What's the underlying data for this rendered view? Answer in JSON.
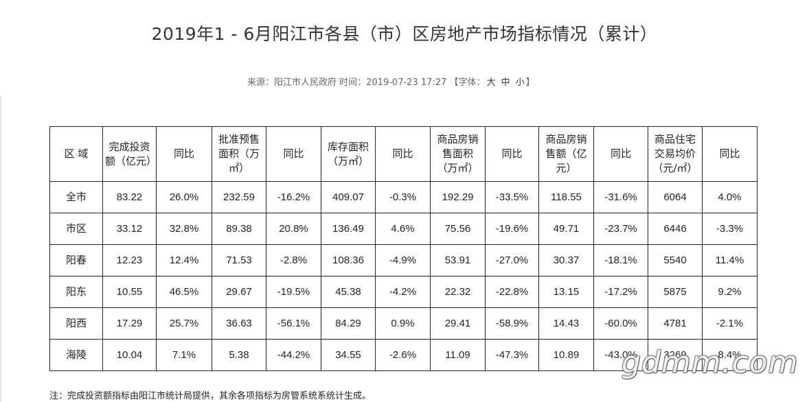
{
  "title": "2019年1 - 6月阳江市各县（市）区房地产市场指标情况（累计）",
  "meta": {
    "source": "来源：阳江市人民政府",
    "time": "时间：2019-07-23 17:27",
    "font_prefix": "【字体：",
    "font_large": "大",
    "font_medium": "中",
    "font_small": "小",
    "font_suffix": "】"
  },
  "table": {
    "headers": [
      "区 域",
      "完成投资额（亿元）",
      "同比",
      "批准预售面积（万㎡）",
      "同比",
      "库存面积（万㎡）",
      "同比",
      "商品房销售面积（万㎡）",
      "同比",
      "商品房销售额（亿元）",
      "同比",
      "商品住宅交易均价（元/㎡）",
      "同比"
    ],
    "rows": [
      [
        "全市",
        "83.22",
        "26.0%",
        "232.59",
        "-16.2%",
        "409.07",
        "-0.3%",
        "192.29",
        "-33.5%",
        "118.55",
        "-31.6%",
        "6064",
        "4.0%"
      ],
      [
        "市区",
        "33.12",
        "32.8%",
        "89.38",
        "20.8%",
        "136.49",
        "4.6%",
        "75.56",
        "-19.6%",
        "49.71",
        "-23.7%",
        "6446",
        "-3.3%"
      ],
      [
        "阳春",
        "12.23",
        "12.4%",
        "71.53",
        "-2.8%",
        "108.36",
        "-4.9%",
        "53.91",
        "-27.0%",
        "30.37",
        "-18.1%",
        "5540",
        "11.4%"
      ],
      [
        "阳东",
        "10.55",
        "46.5%",
        "29.67",
        "-19.5%",
        "45.38",
        "-4.2%",
        "22.32",
        "-22.8%",
        "13.15",
        "-17.2%",
        "5875",
        "9.2%"
      ],
      [
        "阳西",
        "17.29",
        "25.7%",
        "36.63",
        "-56.1%",
        "84.29",
        "0.9%",
        "29.41",
        "-58.9%",
        "14.43",
        "-60.0%",
        "4781",
        "-2.1%"
      ],
      [
        "海陵",
        "10.04",
        "7.1%",
        "5.38",
        "-44.2%",
        "34.55",
        "-2.6%",
        "11.09",
        "-47.3%",
        "10.89",
        "-43.0%",
        "3269",
        "8.4%"
      ]
    ]
  },
  "note": "注：完成投资额指标由阳江市统计局提供，其余各项指标为房管系统系统计生成。",
  "watermark": "gdmm.com"
}
